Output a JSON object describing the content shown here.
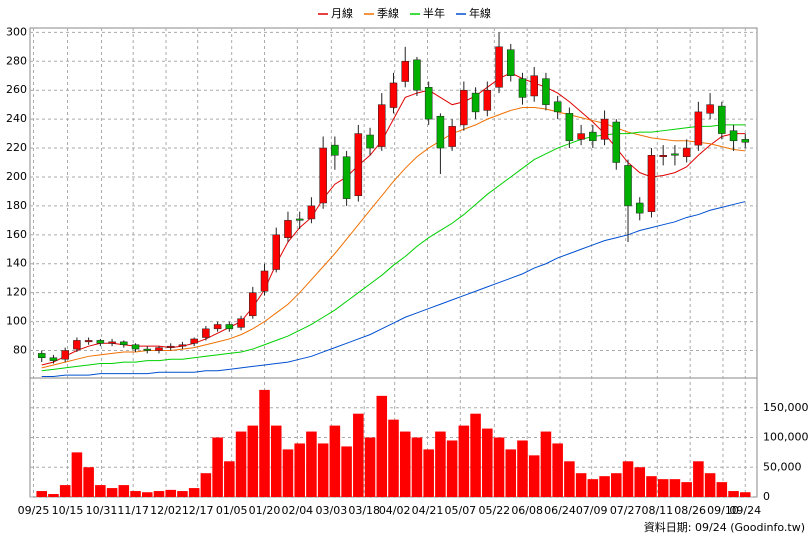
{
  "chart_data": [
    {
      "type": "candlestick",
      "x": [
        0,
        1,
        2,
        3,
        4,
        5,
        6,
        7,
        8,
        9,
        10,
        11,
        12,
        13,
        14,
        15,
        16,
        17,
        18,
        19,
        20,
        21,
        22,
        23,
        24,
        25,
        26,
        27,
        28,
        29,
        30,
        31,
        32,
        33,
        34,
        35,
        36,
        37,
        38,
        39,
        40,
        41,
        42,
        43,
        44,
        45,
        46,
        47,
        48,
        49,
        50,
        51,
        52,
        53,
        54,
        55,
        56,
        57,
        58,
        59,
        60
      ],
      "open": [
        78,
        75,
        74,
        81,
        86,
        87,
        85,
        86,
        84,
        81,
        80,
        82,
        83,
        85,
        89,
        95,
        98,
        96,
        104,
        121,
        136,
        158,
        171,
        171,
        182,
        222,
        214,
        187,
        229,
        221,
        248,
        266,
        281,
        262,
        242,
        221,
        236,
        258,
        246,
        262,
        288,
        268,
        256,
        268,
        252,
        244,
        226,
        231,
        226,
        238,
        208,
        182,
        176,
        214,
        216,
        214,
        222,
        244,
        249,
        232,
        226
      ],
      "high": [
        80,
        77,
        82,
        89,
        89,
        88,
        88,
        87,
        85,
        83,
        83,
        85,
        86,
        89,
        97,
        100,
        100,
        104,
        124,
        140,
        165,
        176,
        176,
        186,
        228,
        228,
        218,
        236,
        234,
        258,
        272,
        290,
        283,
        266,
        244,
        240,
        266,
        262,
        266,
        300,
        292,
        272,
        276,
        272,
        256,
        248,
        236,
        236,
        246,
        240,
        212,
        186,
        220,
        222,
        222,
        226,
        252,
        258,
        252,
        236,
        230
      ],
      "low": [
        72,
        71,
        72,
        79,
        84,
        83,
        83,
        82,
        79,
        78,
        78,
        80,
        81,
        83,
        87,
        93,
        93,
        94,
        102,
        118,
        134,
        155,
        164,
        168,
        178,
        205,
        180,
        183,
        215,
        218,
        244,
        262,
        256,
        236,
        202,
        218,
        232,
        240,
        242,
        258,
        266,
        250,
        252,
        246,
        240,
        220,
        222,
        220,
        222,
        205,
        155,
        170,
        172,
        208,
        208,
        210,
        218,
        240,
        226,
        218,
        220
      ],
      "close": [
        75,
        73,
        80,
        87,
        87,
        85,
        86,
        84,
        81,
        80,
        82,
        83,
        84,
        88,
        95,
        98,
        95,
        102,
        120,
        135,
        160,
        170,
        170,
        180,
        220,
        215,
        185,
        230,
        220,
        250,
        265,
        280,
        260,
        240,
        220,
        235,
        260,
        245,
        260,
        290,
        270,
        255,
        270,
        250,
        245,
        225,
        230,
        225,
        240,
        210,
        180,
        175,
        215,
        215,
        215,
        220,
        245,
        250,
        230,
        225,
        224
      ],
      "up_color": "#ff0000",
      "down_color": "#00b000",
      "series": [
        {
          "name": "月線",
          "color": "#e00000",
          "values": [
            70,
            72,
            76,
            80,
            83,
            85,
            85,
            84,
            83,
            83,
            83,
            82,
            83,
            85,
            88,
            92,
            96,
            100,
            110,
            122,
            140,
            155,
            165,
            172,
            185,
            195,
            200,
            208,
            215,
            225,
            240,
            255,
            258,
            260,
            255,
            250,
            252,
            256,
            262,
            268,
            272,
            268,
            265,
            262,
            258,
            252,
            245,
            238,
            230,
            220,
            210,
            203,
            200,
            201,
            203,
            207,
            215,
            222,
            228,
            230,
            230
          ]
        },
        {
          "name": "季線",
          "color": "#f07000",
          "values": [
            68,
            70,
            72,
            74,
            76,
            77,
            78,
            79,
            79,
            80,
            80,
            80,
            81,
            82,
            84,
            86,
            88,
            91,
            95,
            100,
            106,
            112,
            120,
            129,
            138,
            147,
            157,
            167,
            177,
            187,
            197,
            206,
            214,
            220,
            225,
            230,
            233,
            236,
            240,
            243,
            246,
            248,
            248,
            247,
            245,
            243,
            241,
            239,
            237,
            234,
            231,
            229,
            227,
            226,
            225,
            225,
            224,
            223,
            221,
            219,
            218
          ]
        },
        {
          "name": "半年",
          "color": "#00d000",
          "values": [
            66,
            67,
            68,
            69,
            70,
            71,
            71,
            72,
            72,
            73,
            73,
            74,
            74,
            75,
            76,
            77,
            78,
            79,
            81,
            84,
            87,
            90,
            94,
            98,
            103,
            108,
            114,
            120,
            126,
            132,
            139,
            145,
            152,
            158,
            163,
            168,
            174,
            181,
            188,
            194,
            200,
            206,
            212,
            216,
            220,
            223,
            226,
            228,
            229,
            230,
            230,
            231,
            231,
            232,
            233,
            234,
            235,
            235,
            236,
            236,
            236
          ]
        },
        {
          "name": "年線",
          "color": "#0050d0",
          "values": [
            62,
            62,
            63,
            63,
            63,
            64,
            64,
            64,
            64,
            64,
            65,
            65,
            65,
            65,
            66,
            66,
            67,
            68,
            69,
            70,
            71,
            72,
            74,
            76,
            79,
            82,
            85,
            88,
            91,
            95,
            99,
            103,
            106,
            109,
            112,
            115,
            118,
            121,
            124,
            127,
            130,
            133,
            137,
            140,
            144,
            147,
            150,
            153,
            156,
            158,
            160,
            163,
            165,
            167,
            169,
            172,
            174,
            177,
            179,
            181,
            183
          ]
        }
      ],
      "xlim": [
        -1,
        61
      ],
      "ylim": [
        61,
        303
      ],
      "yticks": [
        80,
        100,
        120,
        140,
        160,
        180,
        200,
        220,
        240,
        260,
        280,
        300
      ],
      "grid": true
    },
    {
      "type": "bar",
      "color": "#ff0000",
      "values": [
        10000,
        5000,
        20000,
        75000,
        50000,
        20000,
        15000,
        20000,
        10000,
        8000,
        10000,
        12000,
        10000,
        15000,
        40000,
        100000,
        60000,
        110000,
        120000,
        180000,
        120000,
        80000,
        90000,
        110000,
        90000,
        120000,
        85000,
        140000,
        100000,
        170000,
        130000,
        110000,
        100000,
        80000,
        110000,
        95000,
        120000,
        140000,
        115000,
        100000,
        80000,
        95000,
        70000,
        110000,
        90000,
        60000,
        40000,
        30000,
        35000,
        40000,
        60000,
        50000,
        35000,
        30000,
        30000,
        25000,
        60000,
        40000,
        25000,
        10000,
        8000
      ],
      "xlim": [
        -1,
        61
      ],
      "ylim": [
        0,
        200000
      ],
      "yticks": [
        0,
        {
          "value": 50000,
          "label": "50,000"
        },
        {
          "value": 100000,
          "label": "100,000"
        },
        {
          "value": 150000,
          "label": "150,000"
        }
      ],
      "xticks": [
        {
          "value": -0.7,
          "label": "09/25"
        },
        {
          "value": 2.2,
          "label": "10/15"
        },
        {
          "value": 5.1,
          "label": "10/31"
        },
        {
          "value": 7.8,
          "label": "11/17"
        },
        {
          "value": 10.6,
          "label": "12/02"
        },
        {
          "value": 13.3,
          "label": "12/17"
        },
        {
          "value": 16.2,
          "label": "01/05"
        },
        {
          "value": 19.0,
          "label": "01/20"
        },
        {
          "value": 21.8,
          "label": "02/04"
        },
        {
          "value": 24.7,
          "label": "03/03"
        },
        {
          "value": 27.5,
          "label": "03/18"
        },
        {
          "value": 30.1,
          "label": "04/02"
        },
        {
          "value": 32.9,
          "label": "04/21"
        },
        {
          "value": 35.7,
          "label": "05/07"
        },
        {
          "value": 38.6,
          "label": "05/22"
        },
        {
          "value": 41.4,
          "label": "06/08"
        },
        {
          "value": 44.2,
          "label": "06/24"
        },
        {
          "value": 46.9,
          "label": "07/09"
        },
        {
          "value": 49.8,
          "label": "07/27"
        },
        {
          "value": 52.5,
          "label": "08/11"
        },
        {
          "value": 55.3,
          "label": "08/26"
        },
        {
          "value": 58.1,
          "label": "09/10"
        },
        {
          "value": 60.0,
          "label": "09/24"
        }
      ],
      "footer": "資料日期: 09/24 (Goodinfo.tw)",
      "grid": true
    }
  ]
}
